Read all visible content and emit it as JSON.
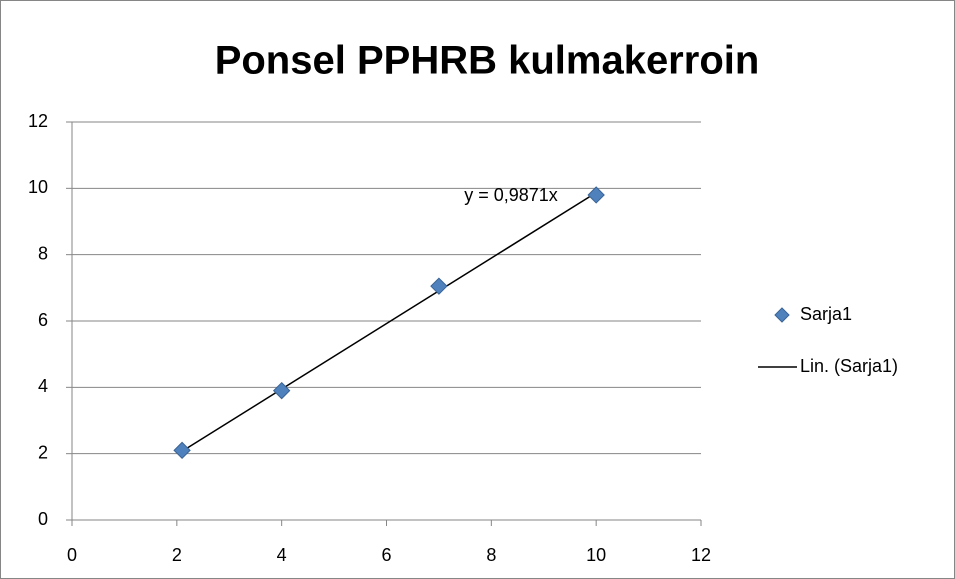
{
  "chart_data": {
    "type": "scatter",
    "title": "Ponsel PPHRB kulmakerroin",
    "series": [
      {
        "name": "Sarja1",
        "color": "#4f81bd",
        "x": [
          2.1,
          4,
          7,
          10
        ],
        "values": [
          2.1,
          3.9,
          7.05,
          9.8
        ]
      }
    ],
    "trendline": {
      "name": "Lin. (Sarja1)",
      "slope": 0.9871,
      "label": "y = 0,9871x",
      "color": "#000000"
    },
    "xlim": [
      0,
      12
    ],
    "xticks": [
      0,
      2,
      4,
      6,
      8,
      10,
      12
    ],
    "ylim": [
      0,
      12
    ],
    "yticks": [
      0,
      2,
      4,
      6,
      8,
      10,
      12
    ],
    "grid": true,
    "legend": "right"
  }
}
